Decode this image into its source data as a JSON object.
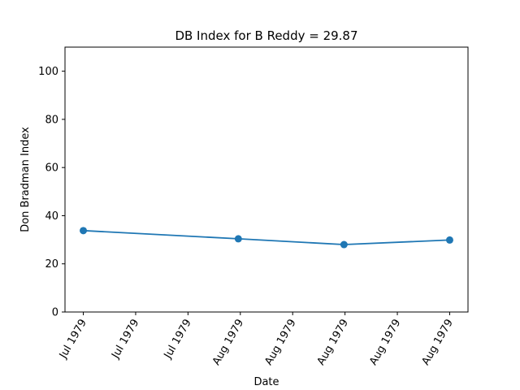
{
  "chart_data": {
    "type": "line",
    "title": "DB Index for B Reddy = 29.87",
    "xlabel": "Date",
    "ylabel": "Don Bradman Index",
    "ylim": [
      0,
      110
    ],
    "yticks": [
      0,
      20,
      40,
      60,
      80,
      100
    ],
    "x_tick_labels": [
      "Jul 1979",
      "Jul 1979",
      "Jul 1979",
      "Aug 1979",
      "Aug 1979",
      "Aug 1979",
      "Aug 1979",
      "Aug 1979"
    ],
    "grid": false,
    "series": [
      {
        "color": "#1f77b4",
        "points": [
          {
            "x": "1979-07-12",
            "y": 33.8
          },
          {
            "x": "1979-08-03",
            "y": 30.4
          },
          {
            "x": "1979-08-18",
            "y": 28.0
          },
          {
            "x": "1979-09-02",
            "y": 29.9
          }
        ]
      }
    ]
  }
}
